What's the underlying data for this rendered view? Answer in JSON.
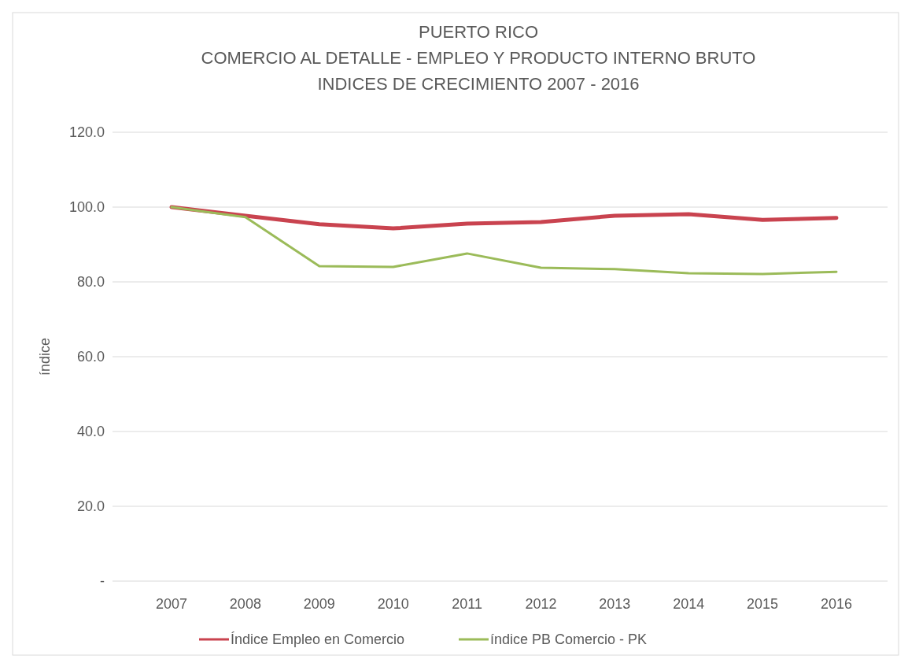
{
  "chart_data": {
    "type": "line",
    "title": "PUERTO RICO\nCOMERCIO AL DETALLE - EMPLEO Y PRODUCTO INTERNO BRUTO\nINDICES DE CRECIMIENTO 2007 - 2016",
    "ylabel": "índice",
    "categories": [
      "2007",
      "2008",
      "2009",
      "2010",
      "2011",
      "2012",
      "2013",
      "2014",
      "2015",
      "2016"
    ],
    "series": [
      {
        "name": "Índice Empleo en Comercio",
        "color": "#c9434f",
        "values": [
          100,
          97.7,
          95.4,
          94.3,
          95.6,
          96,
          97.7,
          98.1,
          96.6,
          97.1
        ]
      },
      {
        "name": "índice PB Comercio - PK",
        "color": "#9bbb59",
        "values": [
          100,
          97.3,
          84.2,
          84,
          87.6,
          83.8,
          83.4,
          82.3,
          82.1,
          82.7
        ]
      }
    ],
    "ylim": [
      0,
      120
    ],
    "yticks": [
      {
        "value": 0,
        "label": "-"
      },
      {
        "value": 20,
        "label": "20.0"
      },
      {
        "value": 40,
        "label": "40.0"
      },
      {
        "value": 60,
        "label": "60.0"
      },
      {
        "value": 80,
        "label": "80.0"
      },
      {
        "value": 100,
        "label": "100.0"
      },
      {
        "value": 120,
        "label": "120.0"
      }
    ],
    "grid": "y",
    "legend": "bottom",
    "marker": "none",
    "line_style": "solid"
  }
}
